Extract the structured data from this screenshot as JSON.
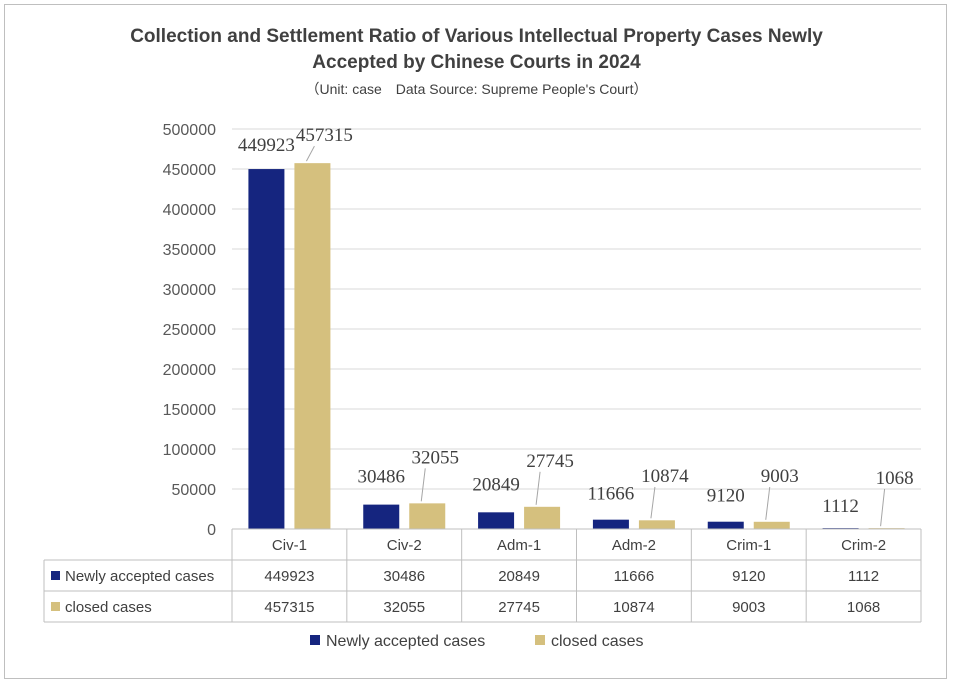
{
  "chart_data": {
    "type": "bar",
    "title_line1": "Collection and Settlement Ratio of Various Intellectual Property Cases Newly",
    "title_line2": "Accepted by Chinese Courts in 2024",
    "subtitle": "（Unit: case　Data Source: Supreme People's Court）",
    "categories": [
      "Civ-1",
      "Civ-2",
      "Adm-1",
      "Adm-2",
      "Crim-1",
      "Crim-2"
    ],
    "series": [
      {
        "name": "Newly accepted cases",
        "color": "#15257f",
        "values": [
          449923,
          30486,
          20849,
          11666,
          9120,
          1112
        ]
      },
      {
        "name": "closed cases",
        "color": "#d5c07e",
        "values": [
          457315,
          32055,
          27745,
          10874,
          9003,
          1068
        ]
      }
    ],
    "ylim": [
      0,
      500000
    ],
    "yticks": [
      0,
      50000,
      100000,
      150000,
      200000,
      250000,
      300000,
      350000,
      400000,
      450000,
      500000
    ],
    "grid": true,
    "legend": "bottom",
    "data_table": true
  }
}
